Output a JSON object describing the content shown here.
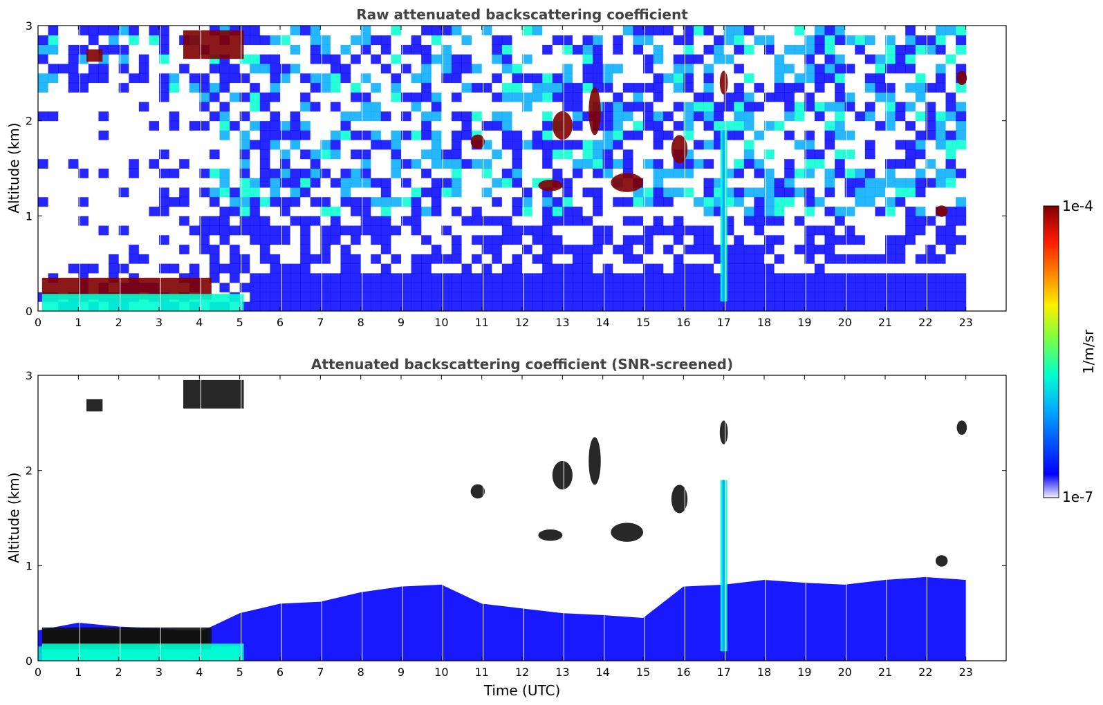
{
  "chart_data": [
    {
      "type": "heatmap",
      "title": "Raw attenuated backscattering coefficient",
      "xlabel": "",
      "ylabel": "Altitude (km)",
      "xlim": [
        0,
        24
      ],
      "ylim": [
        0,
        3
      ],
      "x_ticks": [
        0,
        1,
        2,
        3,
        4,
        5,
        6,
        7,
        8,
        9,
        10,
        11,
        12,
        13,
        14,
        15,
        16,
        17,
        18,
        19,
        20,
        21,
        22,
        23
      ],
      "y_ticks": [
        0,
        1,
        2,
        3
      ],
      "data_end_time": 23,
      "screened": false,
      "features": [
        {
          "kind": "layer",
          "t0": 0.1,
          "t1": 4.3,
          "z0": 0.12,
          "z1": 0.35,
          "level": "high"
        },
        {
          "kind": "layer",
          "t0": 0.1,
          "t1": 5.1,
          "z0": 0.0,
          "z1": 0.18,
          "level": "mid"
        },
        {
          "kind": "layer",
          "t0": 3.6,
          "t1": 5.1,
          "z0": 2.65,
          "z1": 2.95,
          "level": "high"
        },
        {
          "kind": "layer",
          "t0": 1.2,
          "t1": 1.6,
          "z0": 2.62,
          "z1": 2.75,
          "level": "high"
        },
        {
          "kind": "blob",
          "t": 10.9,
          "z": 1.78,
          "w": 0.35,
          "h": 0.15,
          "level": "high"
        },
        {
          "kind": "blob",
          "t": 12.7,
          "z": 1.32,
          "w": 0.6,
          "h": 0.12,
          "level": "high"
        },
        {
          "kind": "blob",
          "t": 13.0,
          "z": 1.95,
          "w": 0.5,
          "h": 0.3,
          "level": "high"
        },
        {
          "kind": "blob",
          "t": 13.8,
          "z": 2.1,
          "w": 0.3,
          "h": 0.5,
          "level": "high"
        },
        {
          "kind": "blob",
          "t": 14.6,
          "z": 1.35,
          "w": 0.8,
          "h": 0.2,
          "level": "high"
        },
        {
          "kind": "blob",
          "t": 15.9,
          "z": 1.7,
          "w": 0.4,
          "h": 0.3,
          "level": "high"
        },
        {
          "kind": "blob",
          "t": 17.0,
          "z": 2.4,
          "w": 0.2,
          "h": 0.25,
          "level": "high"
        },
        {
          "kind": "blob",
          "t": 22.4,
          "z": 1.05,
          "w": 0.3,
          "h": 0.12,
          "level": "high"
        },
        {
          "kind": "blob",
          "t": 22.9,
          "z": 2.45,
          "w": 0.25,
          "h": 0.15,
          "level": "high"
        },
        {
          "kind": "plume",
          "t": 17.0,
          "z0": 0.1,
          "z1": 1.9,
          "level": "mid"
        }
      ]
    },
    {
      "type": "heatmap",
      "title": "Attenuated backscattering coefficient (SNR-screened)",
      "xlabel": "Time (UTC)",
      "ylabel": "Altitude (km)",
      "xlim": [
        0,
        24
      ],
      "ylim": [
        0,
        3
      ],
      "x_ticks": [
        0,
        1,
        2,
        3,
        4,
        5,
        6,
        7,
        8,
        9,
        10,
        11,
        12,
        13,
        14,
        15,
        16,
        17,
        18,
        19,
        20,
        21,
        22,
        23
      ],
      "y_ticks": [
        0,
        1,
        2,
        3
      ],
      "data_end_time": 23,
      "screened": true,
      "boundary_layer_top_km": [
        [
          0,
          0.32
        ],
        [
          1,
          0.4
        ],
        [
          2,
          0.36
        ],
        [
          3,
          0.34
        ],
        [
          4,
          0.3
        ],
        [
          5,
          0.5
        ],
        [
          6,
          0.6
        ],
        [
          7,
          0.62
        ],
        [
          8,
          0.72
        ],
        [
          9,
          0.78
        ],
        [
          10,
          0.8
        ],
        [
          11,
          0.6
        ],
        [
          12,
          0.55
        ],
        [
          13,
          0.5
        ],
        [
          14,
          0.48
        ],
        [
          15,
          0.45
        ],
        [
          16,
          0.78
        ],
        [
          17,
          0.8
        ],
        [
          18,
          0.85
        ],
        [
          19,
          0.82
        ],
        [
          20,
          0.8
        ],
        [
          21,
          0.85
        ],
        [
          22,
          0.88
        ],
        [
          23,
          0.85
        ]
      ]
    }
  ],
  "colorbar": {
    "label": "1/m/sr",
    "min_label": "1e-7",
    "max_label": "1e-4",
    "colormap": "jet",
    "colors": [
      "#f0f0ff",
      "#0000ff",
      "#00aaff",
      "#00ffd0",
      "#7fff40",
      "#ffee00",
      "#ff7a00",
      "#ff1a00",
      "#800000"
    ]
  }
}
